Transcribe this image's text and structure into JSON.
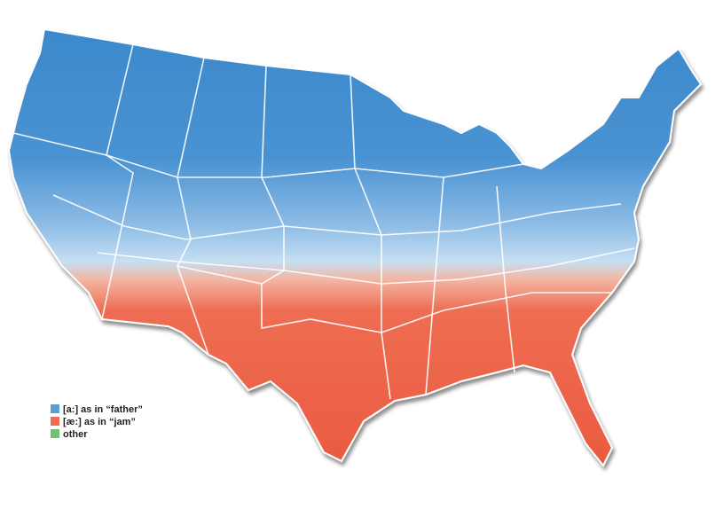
{
  "legend": {
    "items": [
      {
        "label": "[a:] as in “father”",
        "color": "#5b9fd6"
      },
      {
        "label": "[æ:] as in “jam”",
        "color": "#ef6c4f"
      },
      {
        "label": "other",
        "color": "#71c16d"
      }
    ]
  }
}
